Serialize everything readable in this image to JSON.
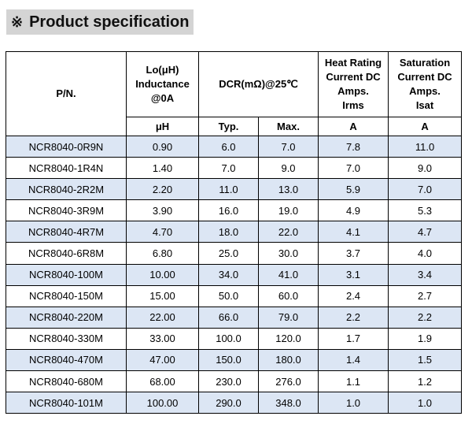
{
  "title": {
    "mark": "※",
    "text": "Product specification"
  },
  "colors": {
    "title_bg": "#d4d4d4",
    "row_shade": "#dce6f4"
  },
  "header": {
    "pn": "P/N.",
    "inductance": [
      "Lo(μH)",
      "Inductance",
      "@0A"
    ],
    "dcr": "DCR(mΩ)@25℃",
    "heat_rating": [
      "Heat Rating",
      "Current DC",
      "Amps.",
      "Irms"
    ],
    "saturation": [
      "Saturation",
      "Current DC",
      "Amps.",
      "Isat"
    ],
    "units": {
      "inductance": "μH",
      "dcr_typ": "Typ.",
      "dcr_max": "Max.",
      "heat": "A",
      "sat": "A"
    }
  },
  "rows": [
    {
      "pn": "NCR8040-0R9N",
      "l": "0.90",
      "typ": "6.0",
      "max": "7.0",
      "irms": "7.8",
      "isat": "11.0"
    },
    {
      "pn": "NCR8040-1R4N",
      "l": "1.40",
      "typ": "7.0",
      "max": "9.0",
      "irms": "7.0",
      "isat": "9.0"
    },
    {
      "pn": "NCR8040-2R2M",
      "l": "2.20",
      "typ": "11.0",
      "max": "13.0",
      "irms": "5.9",
      "isat": "7.0"
    },
    {
      "pn": "NCR8040-3R9M",
      "l": "3.90",
      "typ": "16.0",
      "max": "19.0",
      "irms": "4.9",
      "isat": "5.3"
    },
    {
      "pn": "NCR8040-4R7M",
      "l": "4.70",
      "typ": "18.0",
      "max": "22.0",
      "irms": "4.1",
      "isat": "4.7"
    },
    {
      "pn": "NCR8040-6R8M",
      "l": "6.80",
      "typ": "25.0",
      "max": "30.0",
      "irms": "3.7",
      "isat": "4.0"
    },
    {
      "pn": "NCR8040-100M",
      "l": "10.00",
      "typ": "34.0",
      "max": "41.0",
      "irms": "3.1",
      "isat": "3.4"
    },
    {
      "pn": "NCR8040-150M",
      "l": "15.00",
      "typ": "50.0",
      "max": "60.0",
      "irms": "2.4",
      "isat": "2.7"
    },
    {
      "pn": "NCR8040-220M",
      "l": "22.00",
      "typ": "66.0",
      "max": "79.0",
      "irms": "2.2",
      "isat": "2.2"
    },
    {
      "pn": "NCR8040-330M",
      "l": "33.00",
      "typ": "100.0",
      "max": "120.0",
      "irms": "1.7",
      "isat": "1.9"
    },
    {
      "pn": "NCR8040-470M",
      "l": "47.00",
      "typ": "150.0",
      "max": "180.0",
      "irms": "1.4",
      "isat": "1.5"
    },
    {
      "pn": "NCR8040-680M",
      "l": "68.00",
      "typ": "230.0",
      "max": "276.0",
      "irms": "1.1",
      "isat": "1.2"
    },
    {
      "pn": "NCR8040-101M",
      "l": "100.00",
      "typ": "290.0",
      "max": "348.0",
      "irms": "1.0",
      "isat": "1.0"
    }
  ]
}
